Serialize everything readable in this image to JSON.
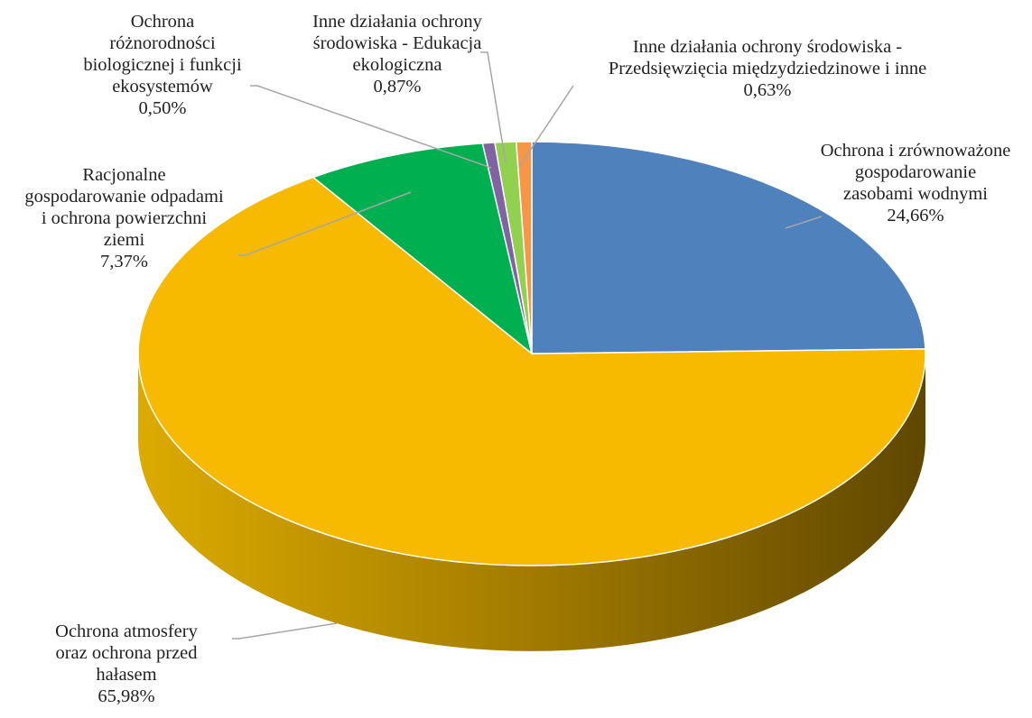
{
  "chart_data": {
    "type": "pie",
    "title": "",
    "style": "3d",
    "slices": [
      {
        "lines": [
          "Ochrona i zrównoważone",
          "gospodarowanie",
          "zasobami wodnymi"
        ],
        "value_label": "24,66%",
        "value": 24.66,
        "color": "#4f81bd"
      },
      {
        "lines": [
          "Ochrona atmosfery",
          "oraz ochrona przed",
          "hałasem"
        ],
        "value_label": "65,98%",
        "value": 65.98,
        "color": "#f8ba00"
      },
      {
        "lines": [
          "Racjonalne",
          "gospodarowanie odpadami",
          "i ochrona powierzchni",
          "ziemi"
        ],
        "value_label": "7,37%",
        "value": 7.37,
        "color": "#00b050"
      },
      {
        "lines": [
          "Ochrona",
          "różnorodności",
          "biologicznej i funkcji",
          "ekosystemów"
        ],
        "value_label": "0,50%",
        "value": 0.5,
        "color": "#8064a2"
      },
      {
        "lines": [
          "Inne działania ochrony",
          "środowiska - Edukacja",
          "ekologiczna"
        ],
        "value_label": "0,87%",
        "value": 0.87,
        "color": "#92d050"
      },
      {
        "lines": [
          "Inne działania ochrony środowiska -",
          "Przedsięwzięcia międzydziedzinowe i inne"
        ],
        "value_label": "0,63%",
        "value": 0.63,
        "color": "#f79646"
      }
    ],
    "legend": "none",
    "data_labels": "outside with leader lines"
  }
}
